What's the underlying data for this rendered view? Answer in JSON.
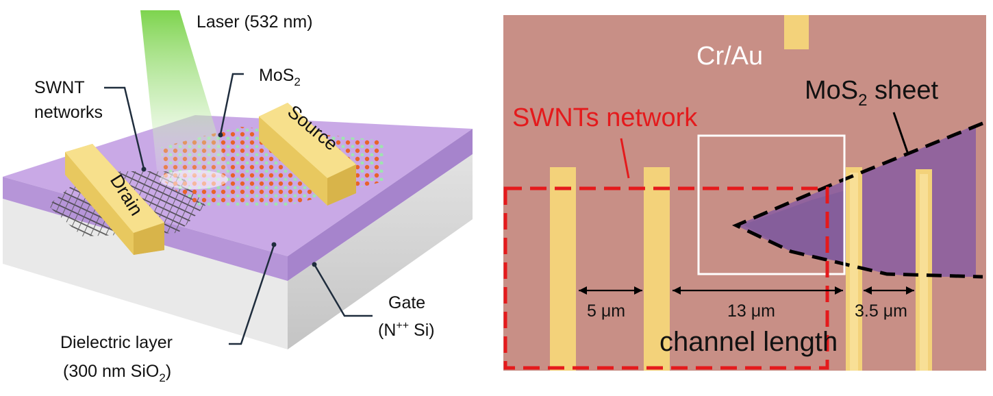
{
  "left": {
    "laser": "Laser (532 nm)",
    "mos2_main": "MoS",
    "mos2_sub": "2",
    "swnt_line1": "SWNT",
    "swnt_line2": "networks",
    "source": "Source",
    "drain": "Drain",
    "gate_line1": "Gate",
    "gate_line2_pre": "(N",
    "gate_line2_sup": "++",
    "gate_line2_post": " Si)",
    "dielectric_line1": "Dielectric layer",
    "dielectric_line2_pre": "(300 nm SiO",
    "dielectric_line2_sub": "2",
    "dielectric_line2_post": ")"
  },
  "right": {
    "cr_au": "Cr/Au",
    "mos2_sheet_main": "MoS",
    "mos2_sheet_sub": "2",
    "mos2_sheet_post": " sheet",
    "swnts_network": "SWNTs network",
    "dim_5": "5 μm",
    "dim_13": "13 μm",
    "dim_35": "3.5 μm",
    "channel_length": "channel length"
  },
  "colors": {
    "substrate_bg": "#c88f86",
    "electrode_gold": "#f3d27a",
    "dielectric_purple": "#c9a9e6",
    "silicon_gray": "#d6d6d6",
    "mos2_flake": "#8a5fa0",
    "annotation_red": "#e41a1c",
    "laser_green": "#7fd34a"
  }
}
